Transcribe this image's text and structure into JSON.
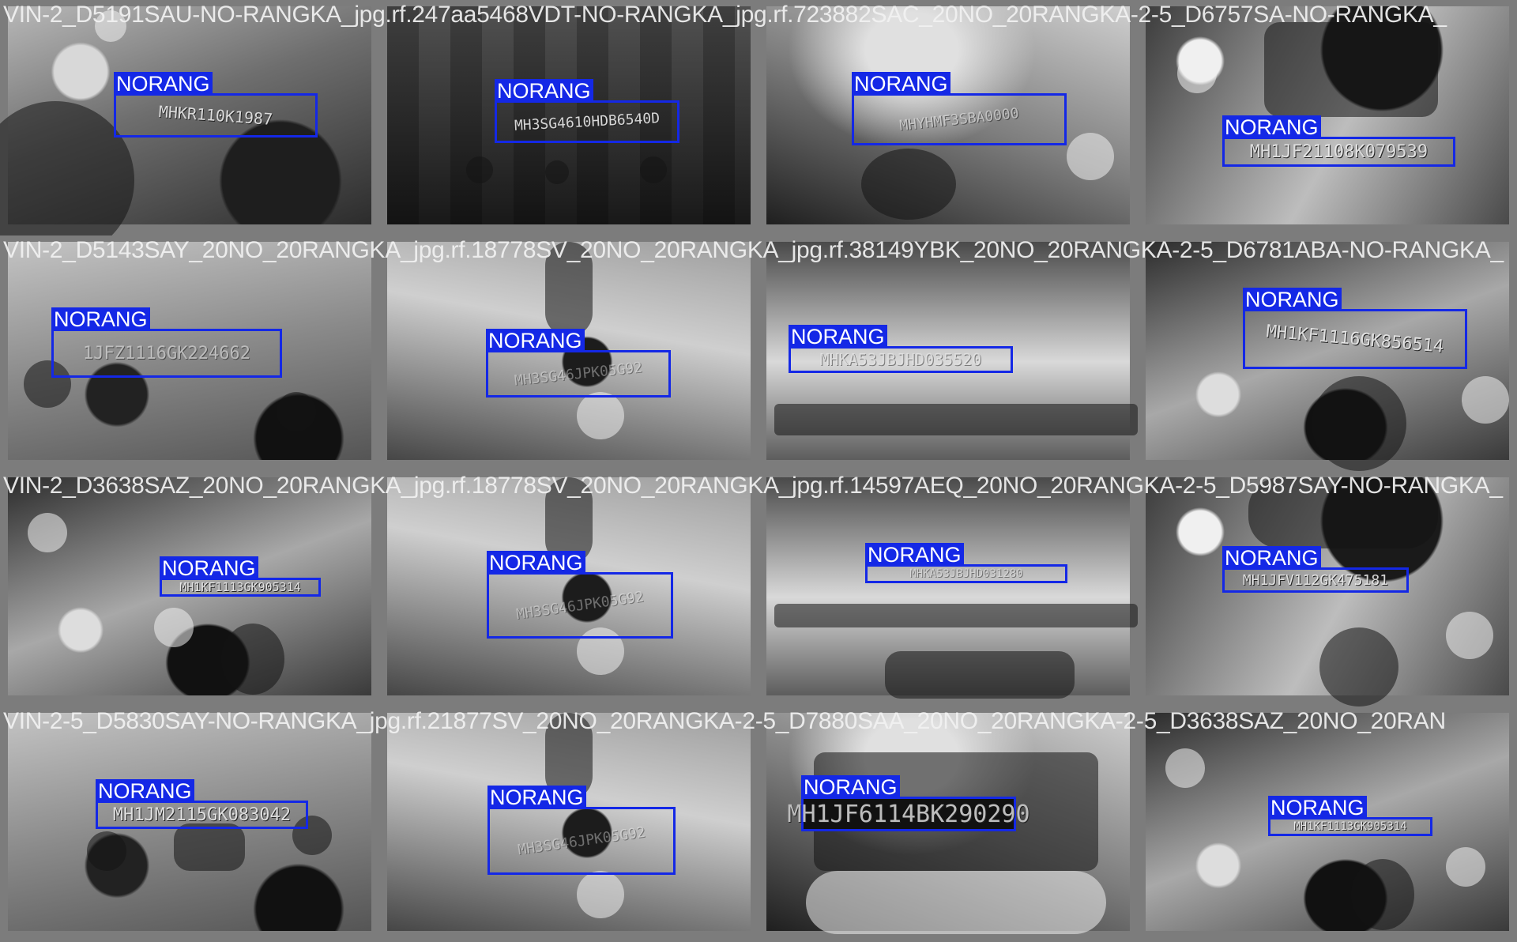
{
  "colors": {
    "detection_box": "#1428e6",
    "detection_label_text": "#ffffff",
    "caption_text": "#f2f2f2",
    "grid_background": "#8a8a8a"
  },
  "detections": {
    "class_label": "NORANG"
  },
  "tiles": [
    {
      "caption": "VIN-2_D5191SAU-NO-RANGKA_jpg.rf.247aa5468VDT-NO-RANGKA_jpg.rf.723882SAC_20NO_20RANGKA-2-5_D6757SA-NO-RANGKA_",
      "plate_text": "MHKR110K1987"
    },
    {
      "caption": "",
      "plate_text": "MH3SG4610HDB6540D"
    },
    {
      "caption": "",
      "plate_text": "MHYHMF3SBA0000"
    },
    {
      "caption": "",
      "plate_text": "MH1JF21108K079539"
    },
    {
      "caption": "VIN-2_D5143SAY_20NO_20RANGKA_jpg.rf.18778SV_20NO_20RANGKA_jpg.rf.38149YBK_20NO_20RANGKA-2-5_D6781ABA-NO-RANGKA_",
      "plate_text": "1JFZ1116GK224662"
    },
    {
      "caption": "",
      "plate_text": "MH3SG46JPK05G92"
    },
    {
      "caption": "",
      "plate_text": "MHKA53JBJHD035520"
    },
    {
      "caption": "",
      "plate_text": "MH1KF1116GK856514"
    },
    {
      "caption": "VIN-2_D3638SAZ_20NO_20RANGKA_jpg.rf.18778SV_20NO_20RANGKA_jpg.rf.14597AEQ_20NO_20RANGKA-2-5_D5987SAY-NO-RANGKA_",
      "plate_text": "MH1KF1113GK905314"
    },
    {
      "caption": "",
      "plate_text": "MH3SG46JPK05G92"
    },
    {
      "caption": "",
      "plate_text": "MHKA53JBJHD031280"
    },
    {
      "caption": "",
      "plate_text": "MH1JFV112GK475181"
    },
    {
      "caption": "VIN-2-5_D5830SAY-NO-RANGKA_jpg.rf.21877SV_20NO_20RANGKA-2-5_D7880SAA_20NO_20RANGKA-2-5_D3638SAZ_20NO_20RAN",
      "plate_text": "MH1JM2115GK083042"
    },
    {
      "caption": "",
      "plate_text": "MH3SG46JPK05G92"
    },
    {
      "caption": "",
      "plate_text": "MH1JF6114BK290290"
    },
    {
      "caption": "",
      "plate_text": "MH1KF1113GK905314"
    }
  ]
}
